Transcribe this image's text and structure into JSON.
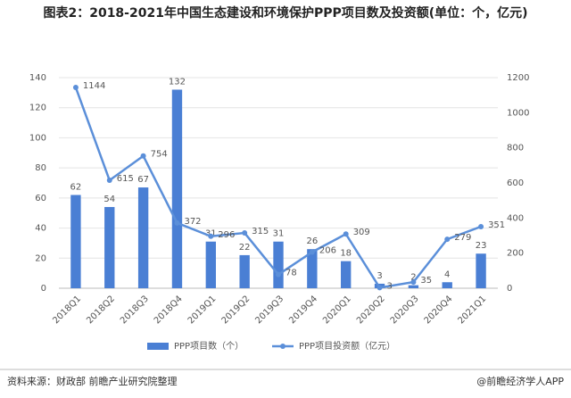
{
  "chart_data": {
    "type": "bar",
    "title": "图表2：2018-2021年中国生态建设和环境保护PPP项目数及投资额(单位：个，亿元)",
    "categories": [
      "2018Q1",
      "2018Q2",
      "2018Q3",
      "2018Q4",
      "2019Q1",
      "2019Q2",
      "2019Q3",
      "2019Q4",
      "2020Q1",
      "2020Q2",
      "2020Q3",
      "2020Q4",
      "2021Q1"
    ],
    "series": [
      {
        "name": "PPP项目数（个）",
        "type": "bar",
        "color": "#4a7fd4",
        "values": [
          62,
          54,
          67,
          132,
          31,
          22,
          31,
          26,
          18,
          3,
          2,
          4,
          23
        ]
      },
      {
        "name": "PPP项目投资额（亿元）",
        "type": "line",
        "axis": "y2",
        "color": "#5b8fd9",
        "values": [
          1144,
          615,
          754,
          372,
          296,
          315,
          78,
          206,
          309,
          3,
          35,
          279,
          351
        ]
      }
    ],
    "ylim": [
      0,
      140
    ],
    "yticks": [
      0,
      20,
      40,
      60,
      80,
      100,
      120,
      140
    ],
    "y2lim": [
      0,
      1200
    ],
    "y2ticks": [
      0,
      200,
      400,
      600,
      800,
      1000,
      1200
    ],
    "source": "资料来源：财政部 前瞻产业研究院整理",
    "credit": "@前瞻经济学人APP"
  }
}
